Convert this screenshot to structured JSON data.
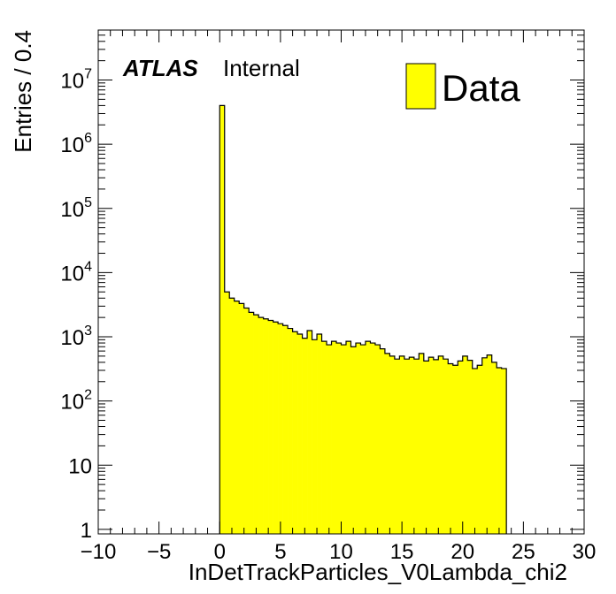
{
  "chart_data": {
    "type": "bar",
    "style": "histogram-step",
    "xlabel": "InDetTrackParticles_V0Lambda_chi2",
    "ylabel": "Entries / 0.4",
    "xlim": [
      -10,
      30
    ],
    "ylim": [
      0.85,
      60000000
    ],
    "yscale": "log",
    "bin_width": 0.4,
    "x_ticks": [
      -10,
      -5,
      0,
      5,
      10,
      15,
      20,
      25,
      30
    ],
    "y_ticks": [
      1,
      10,
      100,
      1000,
      10000,
      100000,
      1000000,
      10000000
    ],
    "y_tick_labels": [
      {
        "base": "1",
        "exp": ""
      },
      {
        "base": "10",
        "exp": ""
      },
      {
        "base": "10",
        "exp": "2"
      },
      {
        "base": "10",
        "exp": "3"
      },
      {
        "base": "10",
        "exp": "4"
      },
      {
        "base": "10",
        "exp": "5"
      },
      {
        "base": "10",
        "exp": "6"
      },
      {
        "base": "10",
        "exp": "7"
      }
    ],
    "series": [
      {
        "name": "Data",
        "color": "#ffff00",
        "edge_color": "#000000",
        "bin_edges_start": 0.0,
        "values": [
          4000000,
          5000,
          4000,
          3600,
          3300,
          2800,
          2400,
          2200,
          2000,
          1900,
          1800,
          1700,
          1600,
          1500,
          1350,
          1200,
          1100,
          950,
          1250,
          900,
          1100,
          850,
          750,
          850,
          800,
          750,
          850,
          700,
          800,
          750,
          850,
          800,
          750,
          650,
          550,
          500,
          450,
          500,
          450,
          480,
          450,
          550,
          420,
          480,
          440,
          500,
          450,
          380,
          360,
          420,
          500,
          430,
          320,
          360,
          470,
          520,
          400,
          330,
          320
        ]
      }
    ],
    "legend": {
      "position": "top-right",
      "entries": [
        "Data"
      ]
    },
    "grid": false
  },
  "atlas_label": {
    "bold": "ATLAS",
    "normal": "Internal"
  },
  "colors": {
    "fill": "#ffff00",
    "frame": "#000000",
    "background": "#ffffff"
  }
}
